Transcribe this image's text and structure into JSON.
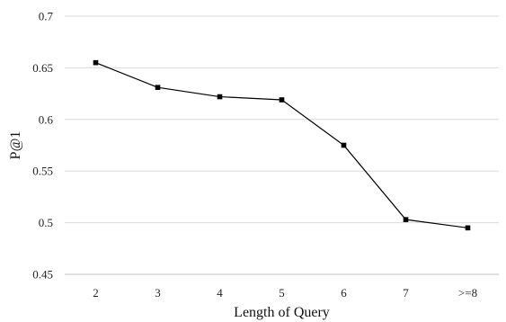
{
  "chart_data": {
    "type": "line",
    "title": "",
    "xlabel": "Length of Query",
    "ylabel": "P@1",
    "categories": [
      "2",
      "3",
      "4",
      "5",
      "6",
      "7",
      ">=8"
    ],
    "series": [
      {
        "values": [
          0.655,
          0.631,
          0.622,
          0.619,
          0.575,
          0.503,
          0.495
        ]
      }
    ],
    "ylim": [
      0.45,
      0.7
    ],
    "yticks": [
      0.45,
      0.5,
      0.55,
      0.6,
      0.65,
      0.7
    ],
    "ytick_labels": [
      "0.45",
      "0.5",
      "0.55",
      "0.6",
      "0.65",
      "0.7"
    ],
    "grid": "horizontal",
    "legend": "none",
    "colors": {
      "series": "#000000",
      "grid": "#d9d9d9",
      "axis": "#bfbfbf"
    }
  }
}
